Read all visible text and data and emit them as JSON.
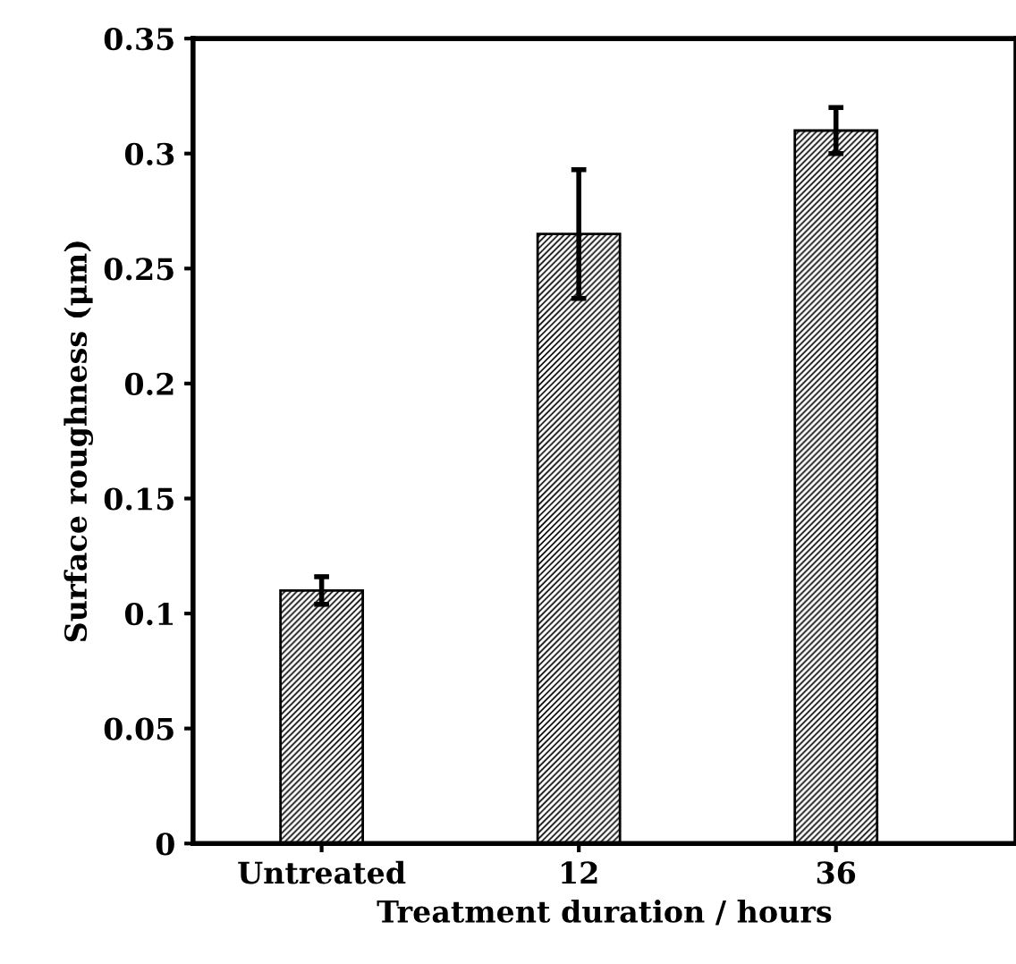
{
  "chart_data": {
    "type": "bar",
    "xlabel": "Treatment duration / hours",
    "ylabel": "Surface roughness (μm)",
    "categories": [
      "Untreated",
      "12",
      "36"
    ],
    "values": [
      0.11,
      0.265,
      0.31
    ],
    "errors": [
      0.006,
      0.028,
      0.01
    ],
    "color": "#000000",
    "ylim": [
      0,
      0.35
    ],
    "yticks": [
      0,
      0.05,
      0.1,
      0.15,
      0.2,
      0.25,
      0.3,
      0.35
    ],
    "grid": false,
    "legend": false
  }
}
